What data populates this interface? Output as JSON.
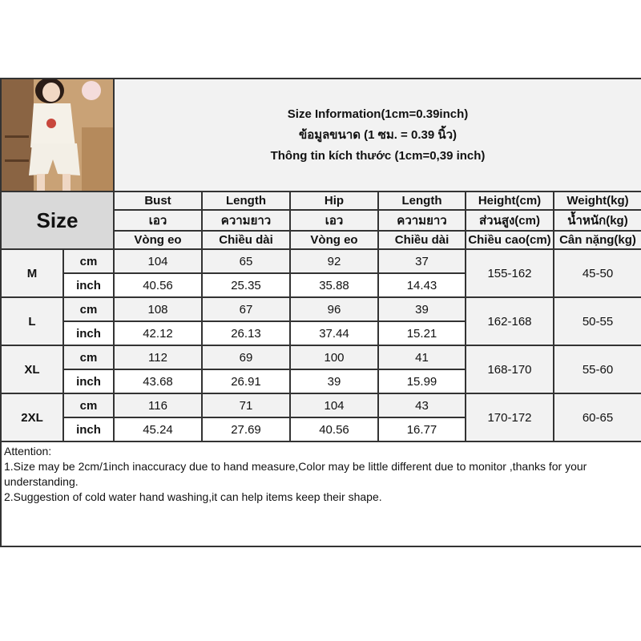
{
  "title": {
    "line_en": "Size Information(1cm=0.39inch)",
    "line_th": "ข้อมูลขนาด (1 ซม. = 0.39 นิ้ว)",
    "line_vi": "Thông tin kích thước (1cm=0,39 inch)"
  },
  "size_label": "Size",
  "columns": [
    {
      "en": "Bust",
      "th": "เอว",
      "vi": "Vòng eo"
    },
    {
      "en": "Length",
      "th": "ความยาว",
      "vi": "Chiều dài"
    },
    {
      "en": "Hip",
      "th": "เอว",
      "vi": "Vòng eo"
    },
    {
      "en": "Length",
      "th": "ความยาว",
      "vi": "Chiều dài"
    },
    {
      "en": "Height(cm)",
      "th": "ส่วนสูง(cm)",
      "vi": "Chiều cao(cm)"
    },
    {
      "en": "Weight(kg)",
      "th": "น้ำหนัก(kg)",
      "vi": "Cân nặng(kg)"
    }
  ],
  "units": {
    "cm": "cm",
    "inch": "inch"
  },
  "sizes": [
    {
      "size": "M",
      "cm": [
        "104",
        "65",
        "92",
        "37"
      ],
      "inch": [
        "40.56",
        "25.35",
        "35.88",
        "14.43"
      ],
      "height": "155-162",
      "weight": "45-50"
    },
    {
      "size": "L",
      "cm": [
        "108",
        "67",
        "96",
        "39"
      ],
      "inch": [
        "42.12",
        "26.13",
        "37.44",
        "15.21"
      ],
      "height": "162-168",
      "weight": "50-55"
    },
    {
      "size": "XL",
      "cm": [
        "112",
        "69",
        "100",
        "41"
      ],
      "inch": [
        "43.68",
        "26.91",
        "39",
        "15.99"
      ],
      "height": "168-170",
      "weight": "55-60"
    },
    {
      "size": "2XL",
      "cm": [
        "116",
        "71",
        "104",
        "43"
      ],
      "inch": [
        "45.24",
        "27.69",
        "40.56",
        "16.77"
      ],
      "height": "170-172",
      "weight": "60-65"
    }
  ],
  "attention": {
    "heading": "Attention:",
    "notes": [
      "1.Size may be 2cm/1inch inaccuracy due to hand measure,Color may be little different due to monitor ,thanks for your understanding.",
      "2.Suggestion of cold water hand washing,it can help items keep their shape."
    ]
  },
  "colors": {
    "border": "#333333",
    "header_bg": "#f2f2f2",
    "size_bg": "#d9d9d9"
  }
}
